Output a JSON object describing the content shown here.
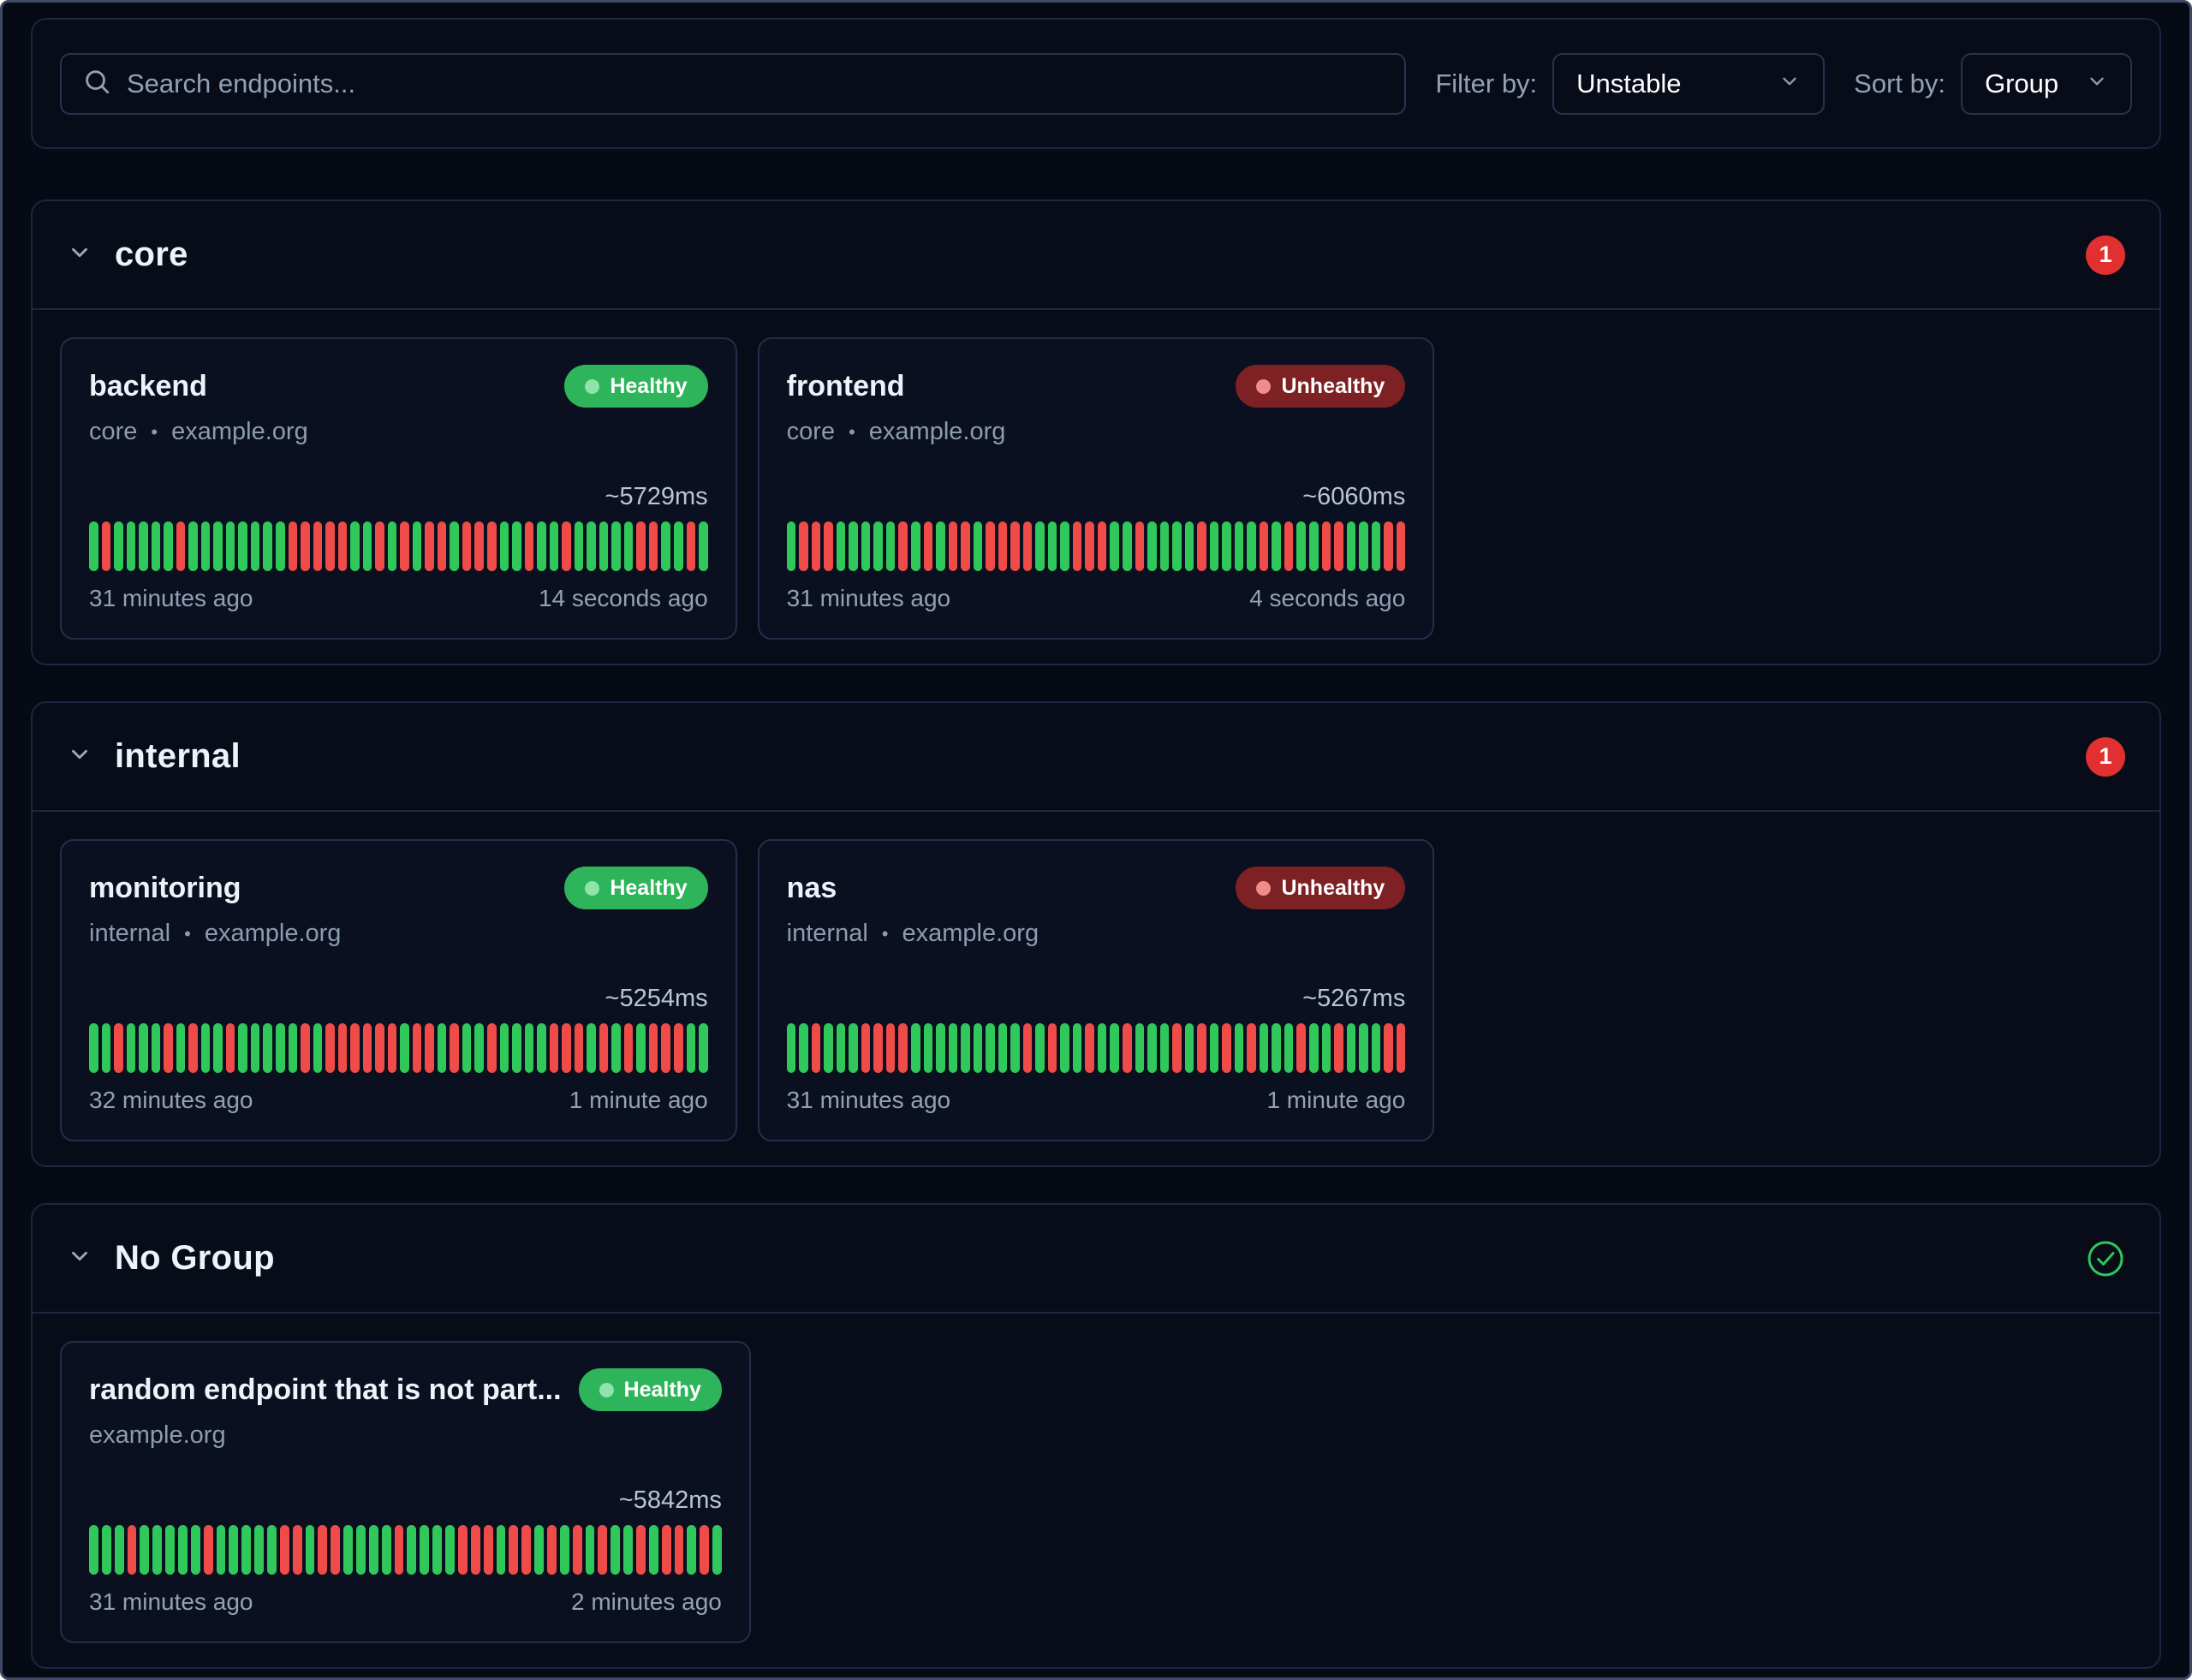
{
  "toolbar": {
    "search_placeholder": "Search endpoints...",
    "filter_label": "Filter by:",
    "filter_value": "Unstable",
    "sort_label": "Sort by:",
    "sort_value": "Group"
  },
  "ui": {
    "separator": "•"
  },
  "colors": {
    "healthy_badge": "#2eb45a",
    "unhealthy_badge": "#7e2124",
    "bar_success": "#30c85a",
    "bar_failure": "#ef4b48",
    "count_badge": "#e23030",
    "ok_check": "#2fc75a"
  },
  "groups": [
    {
      "name": "core",
      "unhealthy_count": "1",
      "endpoints": [
        {
          "name": "backend",
          "group": "core",
          "host": "example.org",
          "status": "Healthy",
          "avg_response": "~5729ms",
          "first_check": "31 minutes ago",
          "last_check": "14 seconds ago",
          "history": [
            1,
            0,
            1,
            1,
            1,
            1,
            1,
            0,
            1,
            1,
            1,
            1,
            1,
            1,
            1,
            1,
            0,
            0,
            0,
            0,
            0,
            1,
            1,
            0,
            1,
            0,
            1,
            0,
            0,
            1,
            0,
            0,
            0,
            1,
            1,
            0,
            1,
            1,
            0,
            1,
            1,
            1,
            1,
            1,
            0,
            0,
            1,
            1,
            0,
            1
          ]
        },
        {
          "name": "frontend",
          "group": "core",
          "host": "example.org",
          "status": "Unhealthy",
          "avg_response": "~6060ms",
          "first_check": "31 minutes ago",
          "last_check": "4 seconds ago",
          "history": [
            1,
            0,
            0,
            0,
            1,
            1,
            1,
            1,
            1,
            0,
            1,
            0,
            1,
            0,
            0,
            1,
            0,
            0,
            0,
            0,
            1,
            1,
            1,
            0,
            0,
            0,
            1,
            1,
            0,
            1,
            1,
            1,
            1,
            0,
            1,
            1,
            1,
            1,
            0,
            1,
            0,
            1,
            1,
            0,
            0,
            1,
            1,
            1,
            0,
            0
          ]
        }
      ]
    },
    {
      "name": "internal",
      "unhealthy_count": "1",
      "endpoints": [
        {
          "name": "monitoring",
          "group": "internal",
          "host": "example.org",
          "status": "Healthy",
          "avg_response": "~5254ms",
          "first_check": "32 minutes ago",
          "last_check": "1 minute ago",
          "history": [
            1,
            1,
            0,
            1,
            1,
            1,
            0,
            1,
            0,
            1,
            1,
            0,
            1,
            1,
            1,
            1,
            1,
            0,
            1,
            0,
            0,
            0,
            0,
            0,
            0,
            1,
            0,
            0,
            1,
            0,
            1,
            1,
            0,
            1,
            1,
            1,
            1,
            0,
            0,
            0,
            1,
            0,
            1,
            0,
            1,
            0,
            0,
            0,
            1,
            1
          ]
        },
        {
          "name": "nas",
          "group": "internal",
          "host": "example.org",
          "status": "Unhealthy",
          "avg_response": "~5267ms",
          "first_check": "31 minutes ago",
          "last_check": "1 minute ago",
          "history": [
            1,
            1,
            0,
            1,
            1,
            1,
            0,
            0,
            0,
            0,
            1,
            1,
            1,
            1,
            1,
            1,
            1,
            1,
            1,
            0,
            1,
            0,
            1,
            1,
            0,
            1,
            1,
            0,
            1,
            1,
            1,
            0,
            1,
            0,
            1,
            0,
            1,
            0,
            1,
            1,
            1,
            0,
            1,
            1,
            0,
            1,
            1,
            1,
            0,
            0
          ]
        }
      ]
    },
    {
      "name": "No Group",
      "unhealthy_count": "",
      "endpoints": [
        {
          "name": "random endpoint that is not part...",
          "group": "",
          "host": "example.org",
          "status": "Healthy",
          "avg_response": "~5842ms",
          "first_check": "31 minutes ago",
          "last_check": "2 minutes ago",
          "history": [
            1,
            1,
            1,
            0,
            1,
            1,
            1,
            1,
            1,
            0,
            1,
            1,
            1,
            1,
            1,
            0,
            0,
            1,
            0,
            0,
            1,
            1,
            1,
            1,
            0,
            1,
            1,
            1,
            1,
            0,
            0,
            0,
            1,
            0,
            0,
            1,
            0,
            1,
            0,
            1,
            0,
            1,
            1,
            0,
            1,
            0,
            0,
            1,
            0,
            1
          ]
        }
      ]
    }
  ]
}
